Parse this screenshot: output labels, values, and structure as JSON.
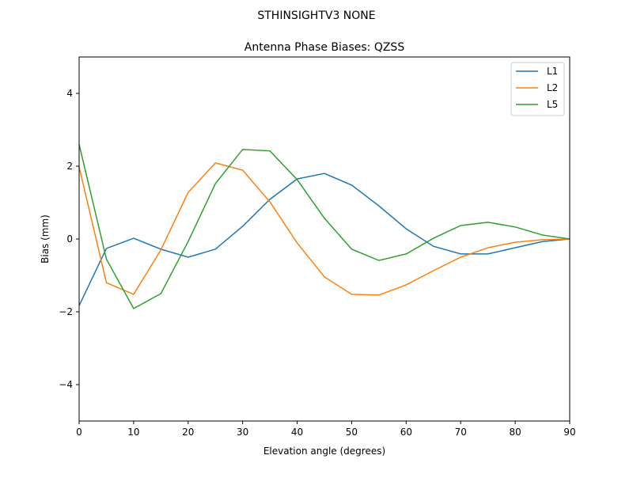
{
  "suptitle": "STHINSIGHTV3    NONE",
  "chart_data": {
    "type": "line",
    "title": "Antenna Phase Biases: QZSS",
    "xlabel": "Elevation angle (degrees)",
    "ylabel": "Bias (mm)",
    "xlim": [
      0,
      90
    ],
    "ylim": [
      -5,
      5
    ],
    "xticks": [
      0,
      10,
      20,
      30,
      40,
      50,
      60,
      70,
      80,
      90
    ],
    "yticks": [
      -4,
      -2,
      0,
      2,
      4
    ],
    "grid": false,
    "legend_position": "top-right",
    "x": [
      0,
      5,
      10,
      15,
      20,
      25,
      30,
      35,
      40,
      45,
      50,
      55,
      60,
      65,
      70,
      75,
      80,
      85,
      90
    ],
    "series": [
      {
        "name": "L1",
        "color": "#1f77b4",
        "values": [
          -1.83,
          -0.26,
          0.02,
          -0.28,
          -0.5,
          -0.28,
          0.35,
          1.09,
          1.65,
          1.8,
          1.48,
          0.91,
          0.28,
          -0.2,
          -0.41,
          -0.41,
          -0.24,
          -0.07,
          0
        ]
      },
      {
        "name": "L2",
        "color": "#ff7f0e",
        "values": [
          1.98,
          -1.2,
          -1.52,
          -0.3,
          1.28,
          2.09,
          1.89,
          1.02,
          -0.11,
          -1.04,
          -1.52,
          -1.54,
          -1.26,
          -0.87,
          -0.5,
          -0.24,
          -0.09,
          -0.02,
          0
        ]
      },
      {
        "name": "L5",
        "color": "#2ca02c",
        "values": [
          2.6,
          -0.55,
          -1.91,
          -1.5,
          -0.07,
          1.52,
          2.46,
          2.42,
          1.63,
          0.57,
          -0.28,
          -0.59,
          -0.41,
          0.02,
          0.37,
          0.46,
          0.33,
          0.11,
          0
        ]
      }
    ]
  }
}
